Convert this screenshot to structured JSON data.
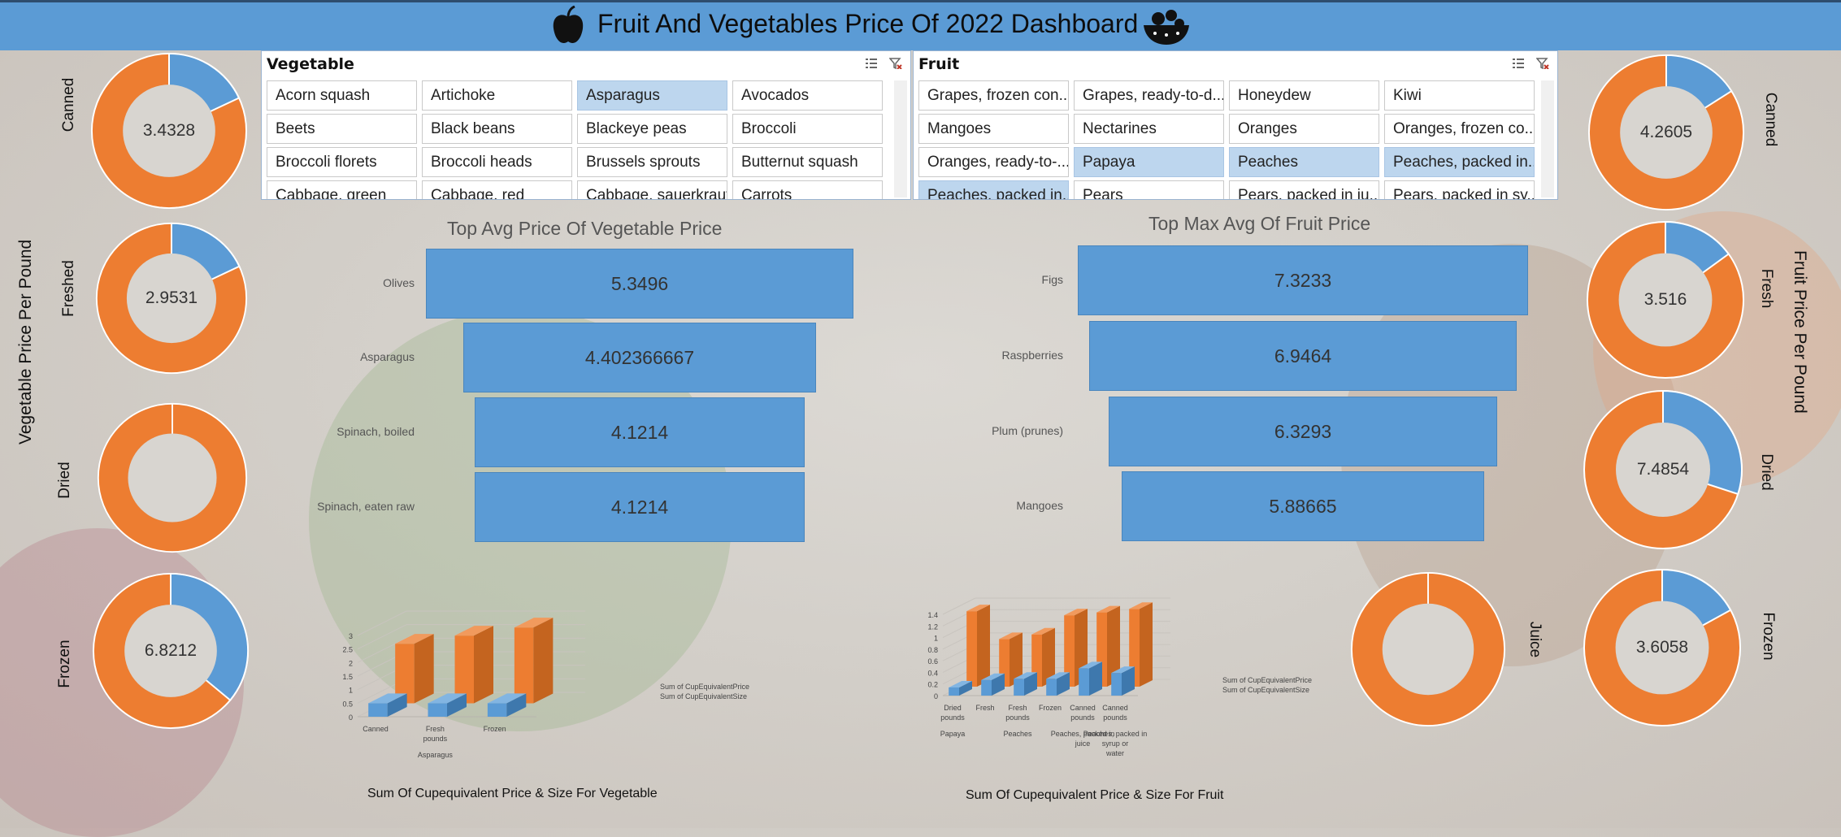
{
  "header": {
    "title": "Fruit And Vegetables Price Of 2022 Dashboard",
    "left_icon": "apple-icon",
    "right_icon": "fruit-bowl-icon"
  },
  "colors": {
    "blue": "#5b9bd5",
    "orange": "#ed7d31",
    "selected": "#bdd6ee"
  },
  "vegetable_slicer": {
    "title": "Vegetable",
    "items": [
      {
        "label": "Acorn squash",
        "selected": false
      },
      {
        "label": "Artichoke",
        "selected": false
      },
      {
        "label": "Asparagus",
        "selected": true
      },
      {
        "label": "Avocados",
        "selected": false
      },
      {
        "label": "Beets",
        "selected": false
      },
      {
        "label": "Black beans",
        "selected": false
      },
      {
        "label": "Blackeye peas",
        "selected": false
      },
      {
        "label": "Broccoli",
        "selected": false
      },
      {
        "label": "Broccoli florets",
        "selected": false
      },
      {
        "label": "Broccoli heads",
        "selected": false
      },
      {
        "label": "Brussels sprouts",
        "selected": false
      },
      {
        "label": "Butternut squash",
        "selected": false
      },
      {
        "label": "Cabbage, green",
        "selected": false
      },
      {
        "label": "Cabbage, red",
        "selected": false
      },
      {
        "label": "Cabbage, sauerkraut",
        "selected": false
      },
      {
        "label": "Carrots",
        "selected": false
      }
    ]
  },
  "fruit_slicer": {
    "title": "Fruit",
    "items": [
      {
        "label": "Grapes, frozen con...",
        "selected": false
      },
      {
        "label": "Grapes, ready-to-d...",
        "selected": false
      },
      {
        "label": "Honeydew",
        "selected": false
      },
      {
        "label": "Kiwi",
        "selected": false
      },
      {
        "label": "Mangoes",
        "selected": false
      },
      {
        "label": "Nectarines",
        "selected": false
      },
      {
        "label": "Oranges",
        "selected": false
      },
      {
        "label": "Oranges, frozen co...",
        "selected": false
      },
      {
        "label": "Oranges, ready-to-...",
        "selected": false
      },
      {
        "label": "Papaya",
        "selected": true
      },
      {
        "label": "Peaches",
        "selected": true
      },
      {
        "label": "Peaches, packed in...",
        "selected": true
      },
      {
        "label": "Peaches, packed in...",
        "selected": true
      },
      {
        "label": "Pears",
        "selected": false
      },
      {
        "label": "Pears, packed in ju...",
        "selected": false
      },
      {
        "label": "Pears, packed in sy...",
        "selected": false
      }
    ]
  },
  "vegetable_side_label": "Vegetable Price Per Pound",
  "fruit_side_label": "Fruit Price Per Pound",
  "chart_data": [
    {
      "type": "pie",
      "name": "veg-canned",
      "label": "Canned",
      "center_value": "3.4328",
      "slices": [
        0.18,
        0.82
      ]
    },
    {
      "type": "pie",
      "name": "veg-fresh",
      "label": "Freshed",
      "center_value": "2.9531",
      "slices": [
        0.18,
        0.82
      ]
    },
    {
      "type": "pie",
      "name": "veg-dried",
      "label": "Dried",
      "center_value": "",
      "slices": [
        0,
        1
      ]
    },
    {
      "type": "pie",
      "name": "veg-frozen",
      "label": "Frozen",
      "center_value": "6.8212",
      "slices": [
        0.36,
        0.64
      ]
    },
    {
      "type": "pie",
      "name": "fruit-canned",
      "label": "Canned",
      "center_value": "4.2605",
      "slices": [
        0.16,
        0.84
      ]
    },
    {
      "type": "pie",
      "name": "fruit-fresh",
      "label": "Fresh",
      "center_value": "3.516",
      "slices": [
        0.15,
        0.85
      ]
    },
    {
      "type": "pie",
      "name": "fruit-dried",
      "label": "Dried",
      "center_value": "7.4854",
      "slices": [
        0.3,
        0.7
      ]
    },
    {
      "type": "pie",
      "name": "fruit-juice",
      "label": "Juice",
      "center_value": "",
      "slices": [
        0,
        1
      ]
    },
    {
      "type": "pie",
      "name": "fruit-frozen",
      "label": "Frozen",
      "center_value": "3.6058",
      "slices": [
        0.17,
        0.83
      ]
    },
    {
      "type": "bar",
      "name": "top-vegetable",
      "title": "Top Avg Price Of Vegetable Price",
      "categories": [
        "Olives",
        "Asparagus",
        "Spinach, boiled",
        "Spinach, eaten raw"
      ],
      "values": [
        5.3496,
        4.402366667,
        4.1214,
        4.1214
      ],
      "labels": [
        "5.3496",
        "4.402366667",
        "4.1214",
        "4.1214"
      ]
    },
    {
      "type": "bar",
      "name": "top-fruit",
      "title": "Top Max Avg Of Fruit Price",
      "categories": [
        "Figs",
        "Raspberries",
        "Plum (prunes)",
        "Mangoes"
      ],
      "values": [
        7.3233,
        6.9464,
        6.3293,
        5.88665
      ],
      "labels": [
        "7.3233",
        "6.9464",
        "6.3293",
        "5.88665"
      ]
    },
    {
      "type": "bar",
      "name": "veg-cup",
      "title": "Sum Of Cupequivalent Price & Size For Vegetable",
      "categories": [
        "Canned",
        "Fresh\npounds\nAsparagus",
        "Frozen"
      ],
      "yticks": [
        "0",
        "0.5",
        "1",
        "1.5",
        "2",
        "2.5",
        "3"
      ],
      "ylim": [
        0,
        3
      ],
      "series": [
        {
          "name": "Sum of CupEquivalentPrice",
          "values": [
            2.2,
            2.5,
            2.8
          ]
        },
        {
          "name": "Sum of CupEquivalentSize",
          "values": [
            0.5,
            0.5,
            0.5
          ]
        }
      ]
    },
    {
      "type": "bar",
      "name": "fruit-cup",
      "title": "Sum Of Cupequivalent Price & Size For Fruit",
      "categories": [
        "Dried\npounds\nPapaya",
        "Fresh",
        "Fresh\npounds\nPeaches",
        "Frozen",
        "Canned\npounds\nPeaches, packed in\njuice",
        "Canned\npounds\nPeaches, packed in\nsyrup or\nwater"
      ],
      "yticks": [
        "0",
        "0.2",
        "0.4",
        "0.6",
        "0.8",
        "1",
        "1.2",
        "1.4"
      ],
      "ylim": [
        0,
        1.4
      ],
      "series": [
        {
          "name": "Sum of CupEquivalentPrice",
          "values": [
            1.3,
            0.82,
            0.9,
            1.23,
            1.28,
            1.34
          ]
        },
        {
          "name": "Sum of CupEquivalentSize",
          "values": [
            0.14,
            0.27,
            0.29,
            0.29,
            0.47,
            0.39
          ]
        }
      ]
    }
  ]
}
